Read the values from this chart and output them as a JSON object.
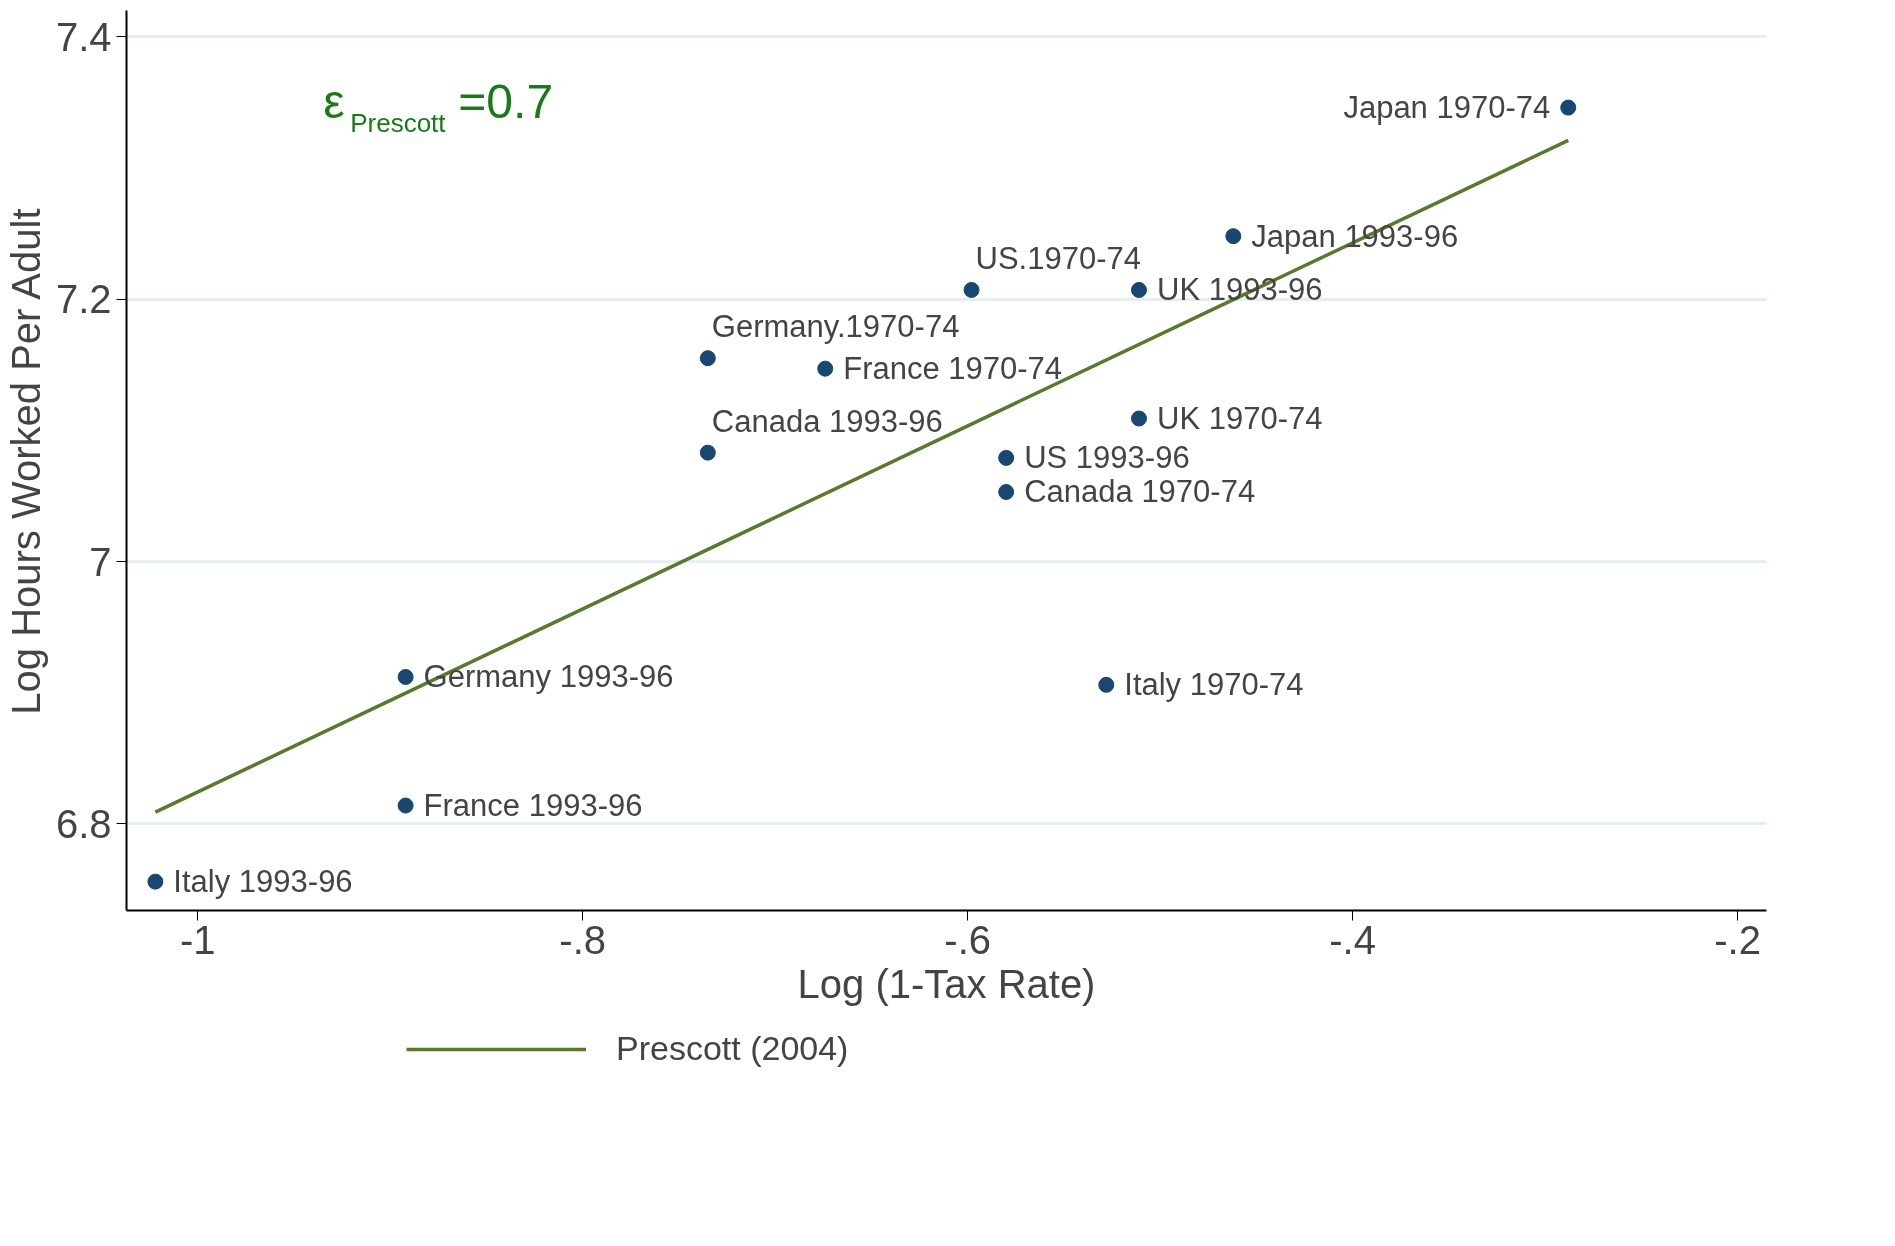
{
  "chart_data": {
    "type": "scatter",
    "xlabel": "Log (1-Tax Rate)",
    "ylabel": "Log Hours Worked Per Adult",
    "xlim": [
      -1.037,
      -0.185
    ],
    "ylim": [
      6.734,
      7.42
    ],
    "xticks": [
      {
        "value": -1,
        "label": "-1"
      },
      {
        "value": -0.8,
        "label": "-.8"
      },
      {
        "value": -0.6,
        "label": "-.6"
      },
      {
        "value": -0.4,
        "label": "-.4"
      },
      {
        "value": -0.2,
        "label": "-.2"
      }
    ],
    "yticks": [
      6.8,
      7,
      7.2,
      7.4
    ],
    "grid": "y",
    "legend": "bottom",
    "series": [
      {
        "type": "scatter",
        "marker": "circle",
        "color": "#1a476f",
        "x": [
          -0.288,
          -0.462,
          -0.598,
          -0.511,
          -0.735,
          -0.674,
          -0.511,
          -0.735,
          -0.58,
          -0.58,
          -0.892,
          -0.528,
          -0.892,
          -1.022
        ],
        "values": [
          7.346,
          7.248,
          7.207,
          7.207,
          7.155,
          7.147,
          7.109,
          7.083,
          7.079,
          7.053,
          6.912,
          6.906,
          6.814,
          6.756
        ]
      },
      {
        "type": "line",
        "name": "Prescott (2004)",
        "color": "#587a2e",
        "x": [
          -1.022,
          -0.288
        ],
        "values": [
          6.809,
          7.321
        ]
      }
    ],
    "annotations": [
      {
        "text": "Japan 1970-74",
        "x": -0.288,
        "y": 7.346
      },
      {
        "text": "Japan 1993-96",
        "x": -0.462,
        "y": 7.248
      },
      {
        "text": "US.1970-74",
        "x": -0.598,
        "y": 7.207
      },
      {
        "text": "UK 1993-96",
        "x": -0.511,
        "y": 7.207
      },
      {
        "text": "Germany.1970-74",
        "x": -0.735,
        "y": 7.155
      },
      {
        "text": "France 1970-74",
        "x": -0.674,
        "y": 7.147
      },
      {
        "text": "UK 1970-74",
        "x": -0.511,
        "y": 7.109
      },
      {
        "text": "Canada 1993-96",
        "x": -0.735,
        "y": 7.083
      },
      {
        "text": "US 1993-96",
        "x": -0.58,
        "y": 7.079
      },
      {
        "text": "Canada 1970-74",
        "x": -0.58,
        "y": 7.053
      },
      {
        "text": "Germany 1993-96",
        "x": -0.892,
        "y": 6.912
      },
      {
        "text": "Italy 1970-74",
        "x": -0.528,
        "y": 6.906
      },
      {
        "text": "France 1993-96",
        "x": -0.892,
        "y": 6.814
      },
      {
        "text": "Italy 1993-96",
        "x": -1.022,
        "y": 6.756
      },
      "ε$_{Prescott}$=0.7"
    ]
  }
}
